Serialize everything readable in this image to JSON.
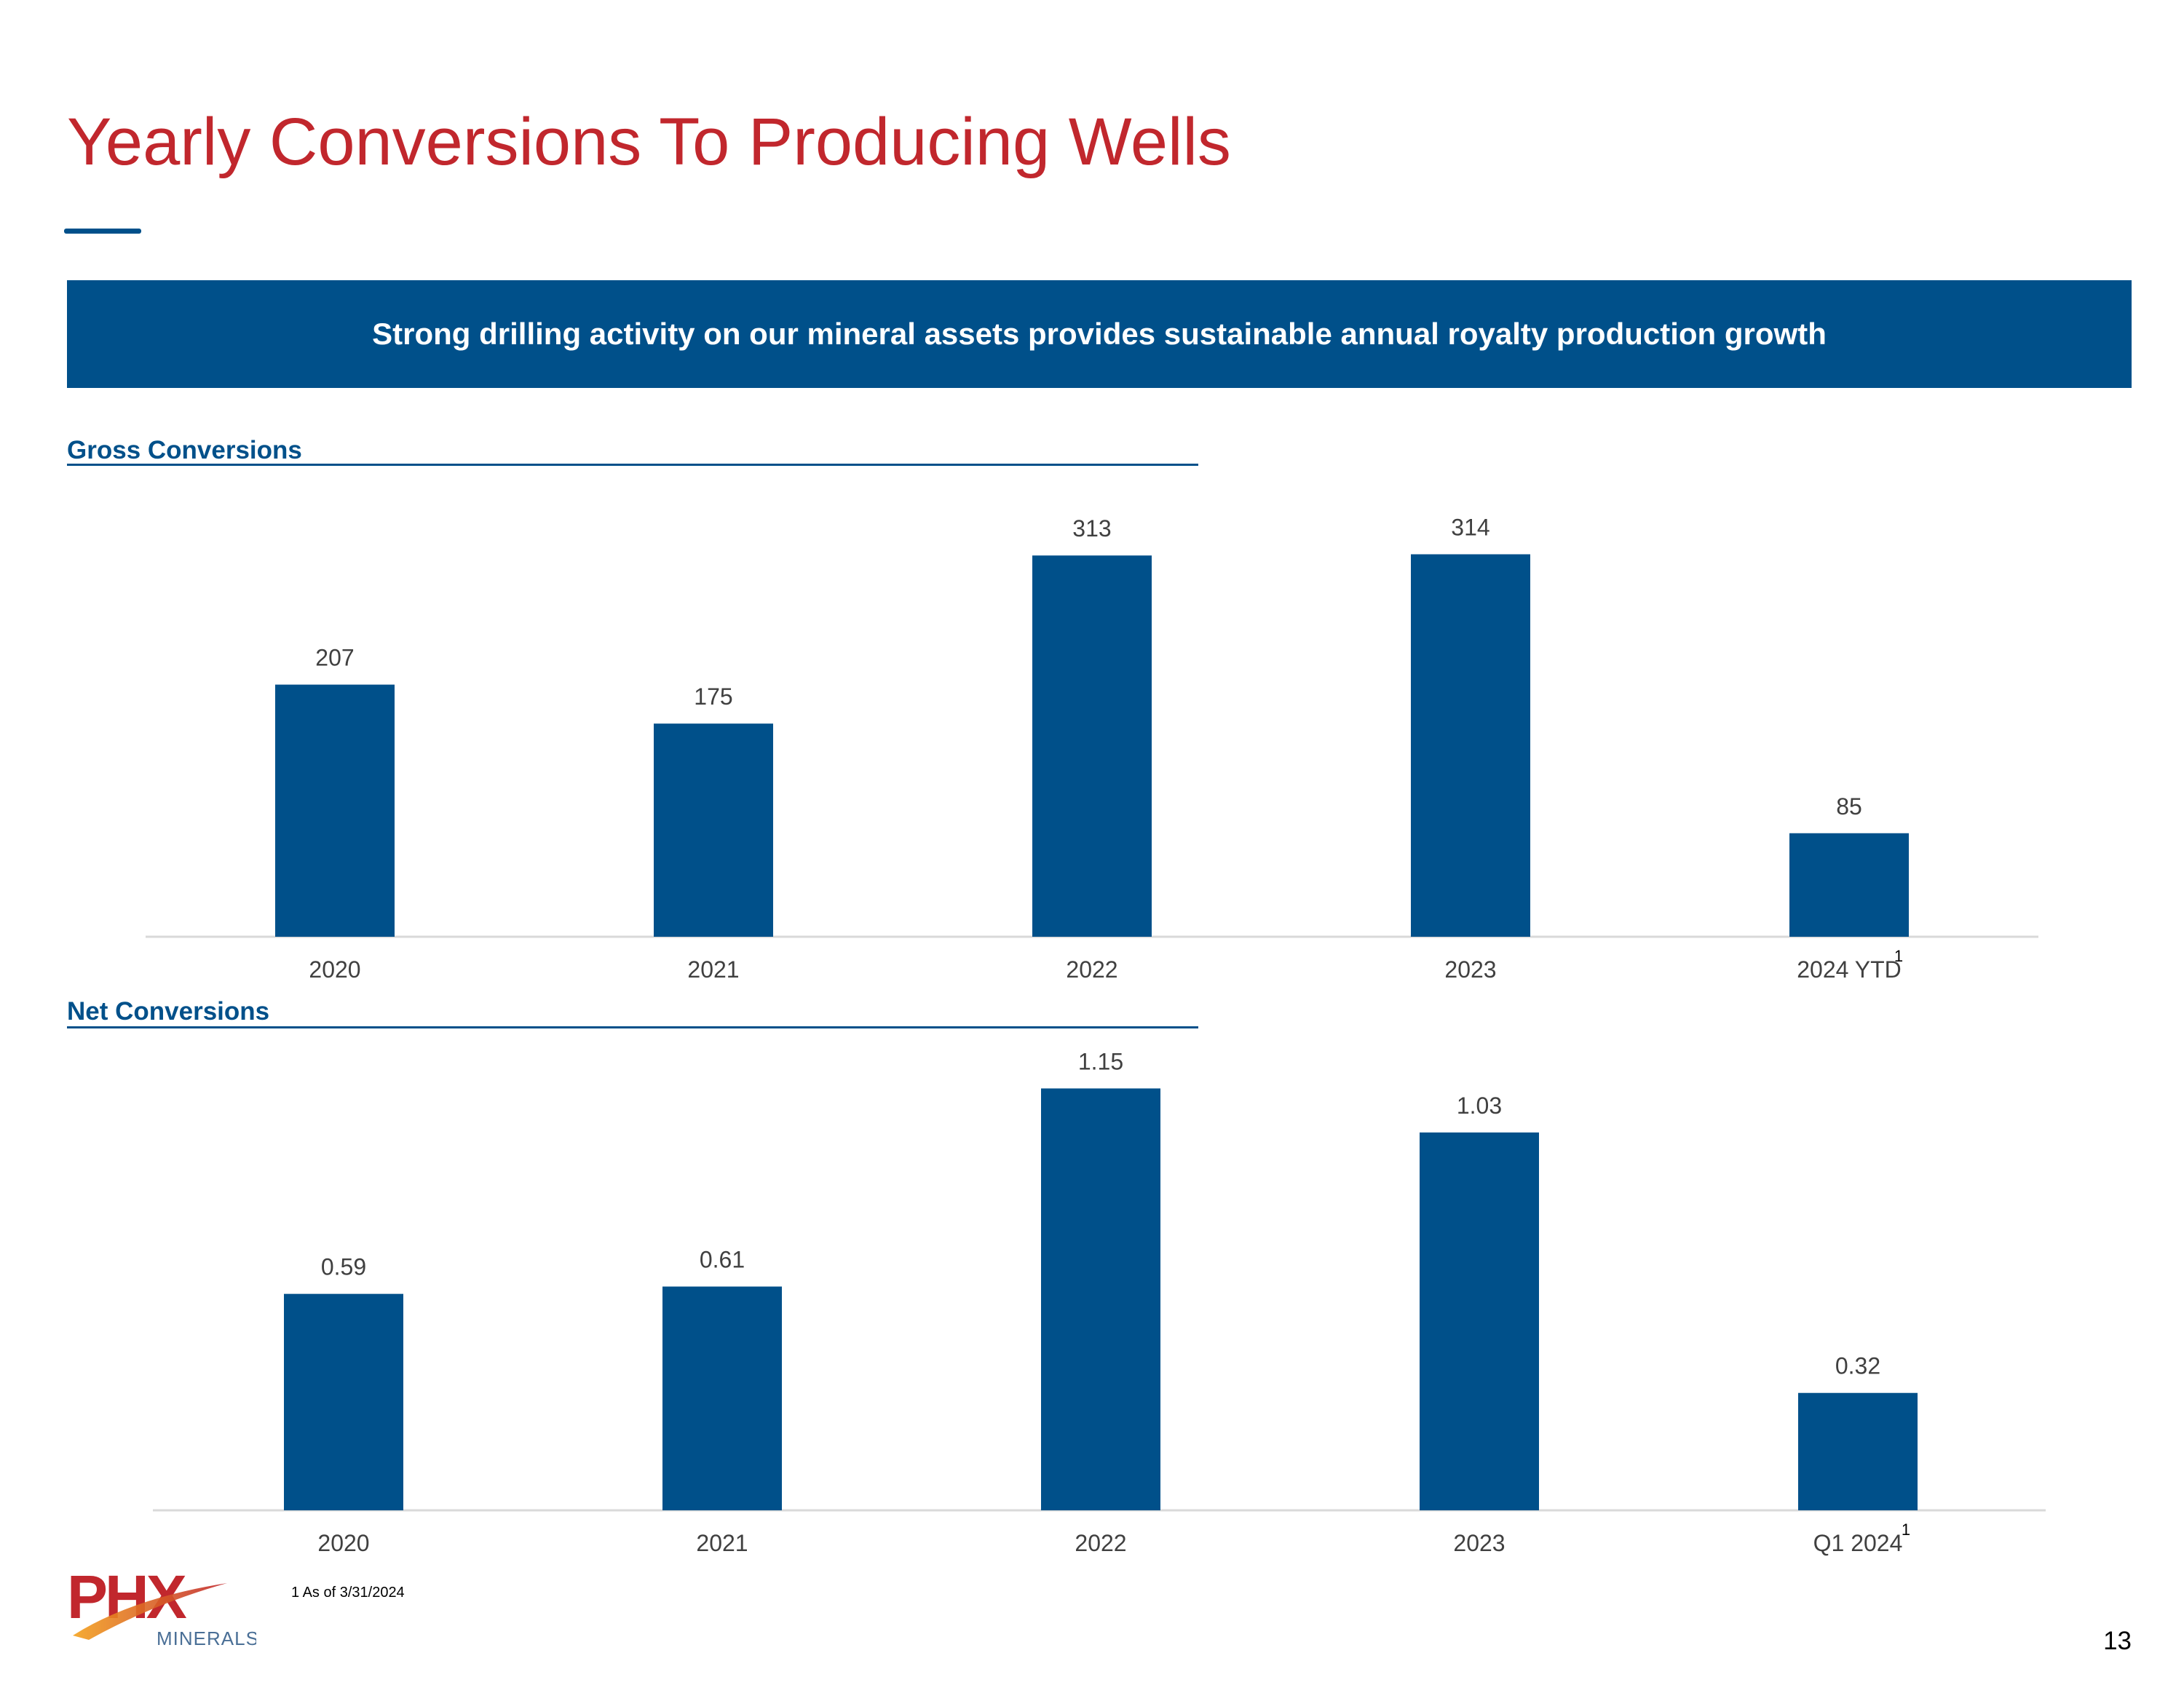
{
  "page": {
    "title": "Yearly Conversions To Producing Wells",
    "banner": "Strong drilling activity on our mineral assets provides sustainable annual royalty production growth",
    "footnote": "1 As of 3/31/2024",
    "page_number": "13",
    "logo": {
      "text": "PHX",
      "subtext": "MINERALS"
    }
  },
  "colors": {
    "title": "#c1272d",
    "accent": "#00508a",
    "bar": "#00508a",
    "axis": "#d9d9d9"
  },
  "chart_data": [
    {
      "type": "bar",
      "title": "Gross Conversions",
      "categories": [
        "2020",
        "2021",
        "2022",
        "2023",
        "2024 YTD"
      ],
      "values": [
        207,
        175,
        313,
        314,
        85
      ],
      "value_labels": [
        "207",
        "175",
        "313",
        "314",
        "85"
      ],
      "footnote_marker": {
        "category": "2024 YTD",
        "text": "1"
      },
      "ylim": [
        0,
        340
      ],
      "xlabel": "",
      "ylabel": "",
      "grid": false,
      "legend": "none"
    },
    {
      "type": "bar",
      "title": "Net Conversions",
      "categories": [
        "2020",
        "2021",
        "2022",
        "2023",
        "Q1 2024"
      ],
      "values": [
        0.59,
        0.61,
        1.15,
        1.03,
        0.32
      ],
      "value_labels": [
        "0.59",
        "0.61",
        "1.15",
        "1.03",
        "0.32"
      ],
      "footnote_marker": {
        "category": "Q1 2024",
        "text": "1"
      },
      "ylim": [
        0,
        1.25
      ],
      "xlabel": "",
      "ylabel": "",
      "grid": false,
      "legend": "none"
    }
  ]
}
